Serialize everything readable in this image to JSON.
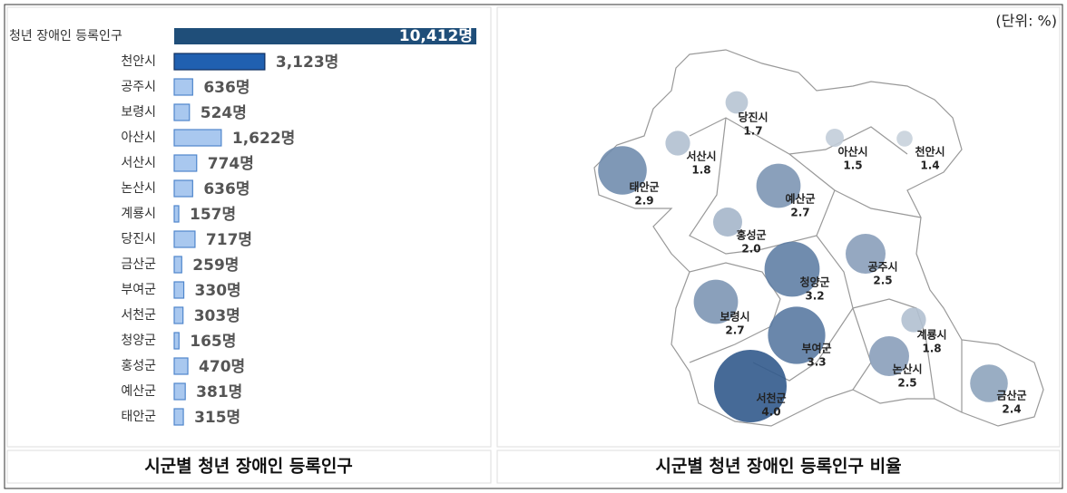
{
  "chart_data": [
    {
      "type": "hbar",
      "title": "시군별 청년 장애인 등록인구",
      "categories": [
        "청년 장애인 등록인구",
        "천안시",
        "공주시",
        "보령시",
        "아산시",
        "서산시",
        "논산시",
        "계룡시",
        "당진시",
        "금산군",
        "부여군",
        "서천군",
        "청양군",
        "홍성군",
        "예산군",
        "태안군"
      ],
      "values": [
        10412,
        3123,
        636,
        524,
        1622,
        774,
        636,
        157,
        717,
        259,
        330,
        303,
        165,
        470,
        381,
        315
      ],
      "value_labels": [
        "10,412명",
        "3,123명",
        "636명",
        "524명",
        "1,622명",
        "774명",
        "636명",
        "157명",
        "717명",
        "259명",
        "330명",
        "303명",
        "165명",
        "470명",
        "381명",
        "315명"
      ]
    },
    {
      "type": "bubble-map",
      "title": "시군별 청년 장애인 등록인구 비율",
      "unit": "(단위: %)",
      "categories": [
        "당진시",
        "서산시",
        "아산시",
        "천안시",
        "태안군",
        "예산군",
        "홍성군",
        "청양군",
        "공주시",
        "보령시",
        "계룡시",
        "부여군",
        "논산시",
        "서천군",
        "금산군"
      ],
      "values": [
        1.7,
        1.8,
        1.5,
        1.4,
        2.9,
        2.7,
        2.0,
        3.2,
        2.5,
        2.7,
        1.8,
        3.3,
        2.5,
        4.0,
        2.4
      ],
      "value_labels": [
        "1.7",
        "1.8",
        "1.5",
        "1.4",
        "2.9",
        "2.7",
        "2.0",
        "3.2",
        "2.5",
        "2.7",
        "1.8",
        "3.3",
        "2.5",
        "4.0",
        "2.4"
      ]
    }
  ]
}
